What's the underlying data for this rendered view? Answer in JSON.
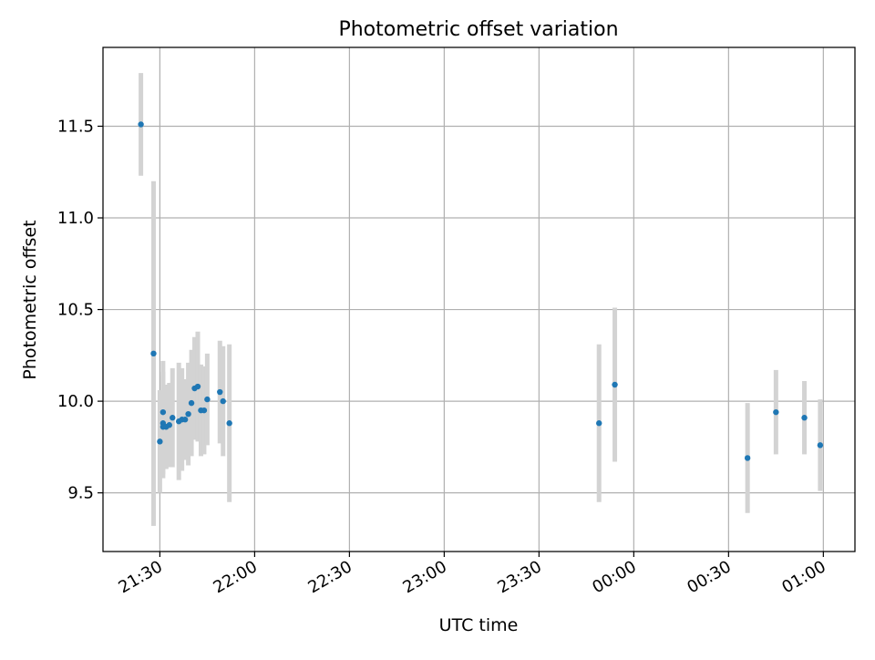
{
  "chart_data": {
    "type": "scatter",
    "title": "Photometric offset variation",
    "xlabel": "UTC time",
    "ylabel": "Photometric offset",
    "grid": true,
    "legend": "none",
    "x_tick_labels": [
      "21:30",
      "22:00",
      "22:30",
      "23:00",
      "23:30",
      "00:00",
      "00:30",
      "01:00"
    ],
    "y_tick_labels": [
      "9.5",
      "10.0",
      "10.5",
      "11.0",
      "11.5"
    ],
    "x_ticks": [
      "21:30",
      "22:00",
      "22:30",
      "23:00",
      "23:30",
      "00:00",
      "00:30",
      "01:00"
    ],
    "y_ticks": [
      9.5,
      10.0,
      10.5,
      11.0,
      11.5
    ],
    "xlim": [
      "21:12",
      "01:10"
    ],
    "ylim": [
      9.18,
      11.93
    ],
    "colors": {
      "point": "#1f77b4",
      "errorbar": "#d3d3d3",
      "grid": "#b0b0b0"
    },
    "series": [
      {
        "values": [
          {
            "x": "21:24",
            "y": 11.51,
            "yerr": 0.28
          },
          {
            "x": "21:28",
            "y": 10.26,
            "yerr": 0.94
          },
          {
            "x": "21:30",
            "y": 9.78,
            "yerr": 0.28
          },
          {
            "x": "21:31",
            "y": 9.94,
            "yerr": 0.28
          },
          {
            "x": "21:31",
            "y": 9.88,
            "yerr": 0.28
          },
          {
            "x": "21:31",
            "y": 9.86,
            "yerr": 0.28
          },
          {
            "x": "21:32",
            "y": 9.86,
            "yerr": 0.23
          },
          {
            "x": "21:33",
            "y": 9.87,
            "yerr": 0.23
          },
          {
            "x": "21:34",
            "y": 9.91,
            "yerr": 0.27
          },
          {
            "x": "21:36",
            "y": 9.89,
            "yerr": 0.32
          },
          {
            "x": "21:37",
            "y": 9.9,
            "yerr": 0.28
          },
          {
            "x": "21:38",
            "y": 9.9,
            "yerr": 0.22
          },
          {
            "x": "21:39",
            "y": 9.93,
            "yerr": 0.28
          },
          {
            "x": "21:40",
            "y": 9.99,
            "yerr": 0.29
          },
          {
            "x": "21:41",
            "y": 10.07,
            "yerr": 0.28
          },
          {
            "x": "21:42",
            "y": 10.08,
            "yerr": 0.3
          },
          {
            "x": "21:43",
            "y": 9.95,
            "yerr": 0.25
          },
          {
            "x": "21:44",
            "y": 9.95,
            "yerr": 0.24
          },
          {
            "x": "21:45",
            "y": 10.01,
            "yerr": 0.25
          },
          {
            "x": "21:49",
            "y": 10.05,
            "yerr": 0.28
          },
          {
            "x": "21:50",
            "y": 10.0,
            "yerr": 0.3
          },
          {
            "x": "21:52",
            "y": 9.88,
            "yerr": 0.43
          },
          {
            "x": "23:49",
            "y": 9.88,
            "yerr": 0.43
          },
          {
            "x": "23:54",
            "y": 10.09,
            "yerr": 0.42
          },
          {
            "x": "00:36",
            "y": 9.69,
            "yerr": 0.3
          },
          {
            "x": "00:45",
            "y": 9.94,
            "yerr": 0.23
          },
          {
            "x": "00:54",
            "y": 9.91,
            "yerr": 0.2
          },
          {
            "x": "00:59",
            "y": 9.76,
            "yerr": 0.25
          }
        ]
      }
    ]
  }
}
